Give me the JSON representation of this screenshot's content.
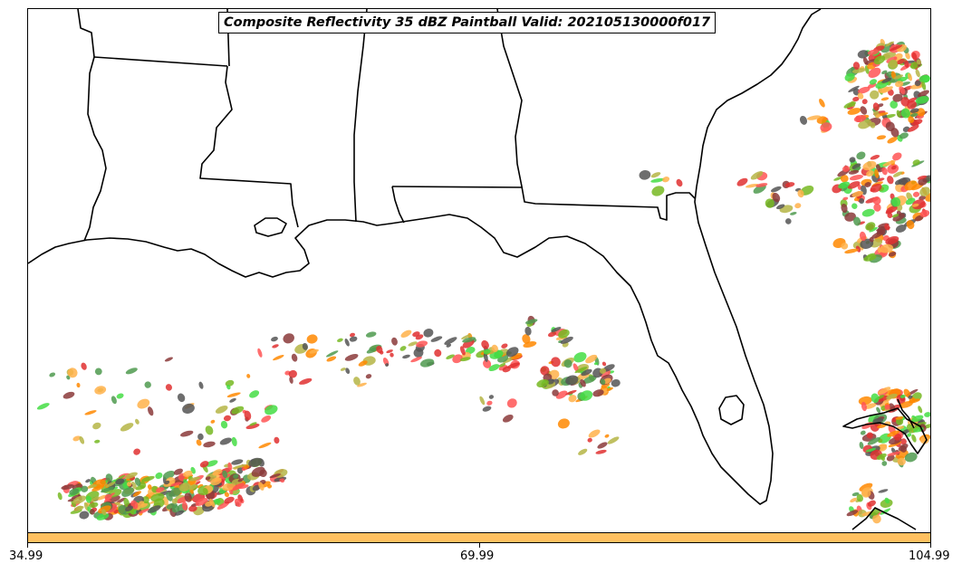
{
  "title": "Composite Reflectivity 35 dBZ Paintball Valid: 202105130000f017",
  "colorbar": {
    "color": "#ffc060",
    "ticks": [
      "34.99",
      "69.99",
      "104.99"
    ]
  },
  "paintball_palette": [
    "#ff5555",
    "#ff8800",
    "#ffb14a",
    "#b5b545",
    "#77b822",
    "#44dd44",
    "#4f9a4f",
    "#555555",
    "#8b3a3a",
    "#e03030"
  ]
}
